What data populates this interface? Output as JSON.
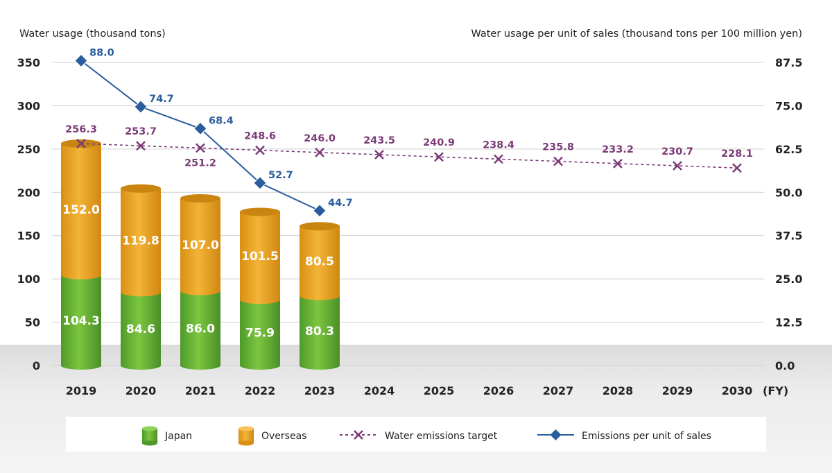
{
  "chart_data": {
    "type": "bar",
    "title": "",
    "left_axis_title": "Water usage (thousand tons)",
    "right_axis_title": "Water usage per unit of sales (thousand tons per 100 million yen)",
    "x_unit": "(FY)",
    "categories": [
      "2019",
      "2020",
      "2021",
      "2022",
      "2023",
      "2024",
      "2025",
      "2026",
      "2027",
      "2028",
      "2029",
      "2030"
    ],
    "ylim": [
      0,
      350
    ],
    "yticks": [
      "0",
      "50",
      "100",
      "150",
      "200",
      "250",
      "300",
      "350"
    ],
    "y2lim": [
      0,
      87.5
    ],
    "y2ticks": [
      "0.0",
      "12.5",
      "25.0",
      "37.5",
      "50.0",
      "62.5",
      "75.0",
      "87.5"
    ],
    "grid": true,
    "legend_position": "bottom",
    "series": [
      {
        "name": "Japan",
        "type": "stacked-bar",
        "axis": "left",
        "color": "#5aa532",
        "values": [
          104.3,
          84.6,
          86.0,
          75.9,
          80.3,
          null,
          null,
          null,
          null,
          null,
          null,
          null
        ],
        "labels": [
          "104.3",
          "84.6",
          "86.0",
          "75.9",
          "80.3"
        ]
      },
      {
        "name": "Overseas",
        "type": "stacked-bar",
        "axis": "left",
        "color": "#e8a020",
        "values": [
          152.0,
          119.8,
          107.0,
          101.5,
          80.5,
          null,
          null,
          null,
          null,
          null,
          null,
          null
        ],
        "labels": [
          "152.0",
          "119.8",
          "107.0",
          "101.5",
          "80.5"
        ]
      },
      {
        "name": "Water emissions target",
        "type": "line-dashed",
        "axis": "left",
        "color": "#7b3b78",
        "marker": "x",
        "values": [
          256.3,
          253.7,
          251.2,
          248.6,
          246.0,
          243.5,
          240.9,
          238.4,
          235.8,
          233.2,
          230.7,
          228.1
        ],
        "labels": [
          "256.3",
          "253.7",
          "251.2",
          "248.6",
          "246.0",
          "243.5",
          "240.9",
          "238.4",
          "235.8",
          "233.2",
          "230.7",
          "228.1"
        ]
      },
      {
        "name": "Emissions per unit of sales",
        "type": "line",
        "axis": "right",
        "color": "#2a5d9c",
        "marker": "diamond",
        "values": [
          88.0,
          74.7,
          68.4,
          52.7,
          44.7,
          null,
          null,
          null,
          null,
          null,
          null,
          null
        ],
        "labels": [
          "88.0",
          "74.7",
          "68.4",
          "52.7",
          "44.7"
        ]
      }
    ]
  }
}
